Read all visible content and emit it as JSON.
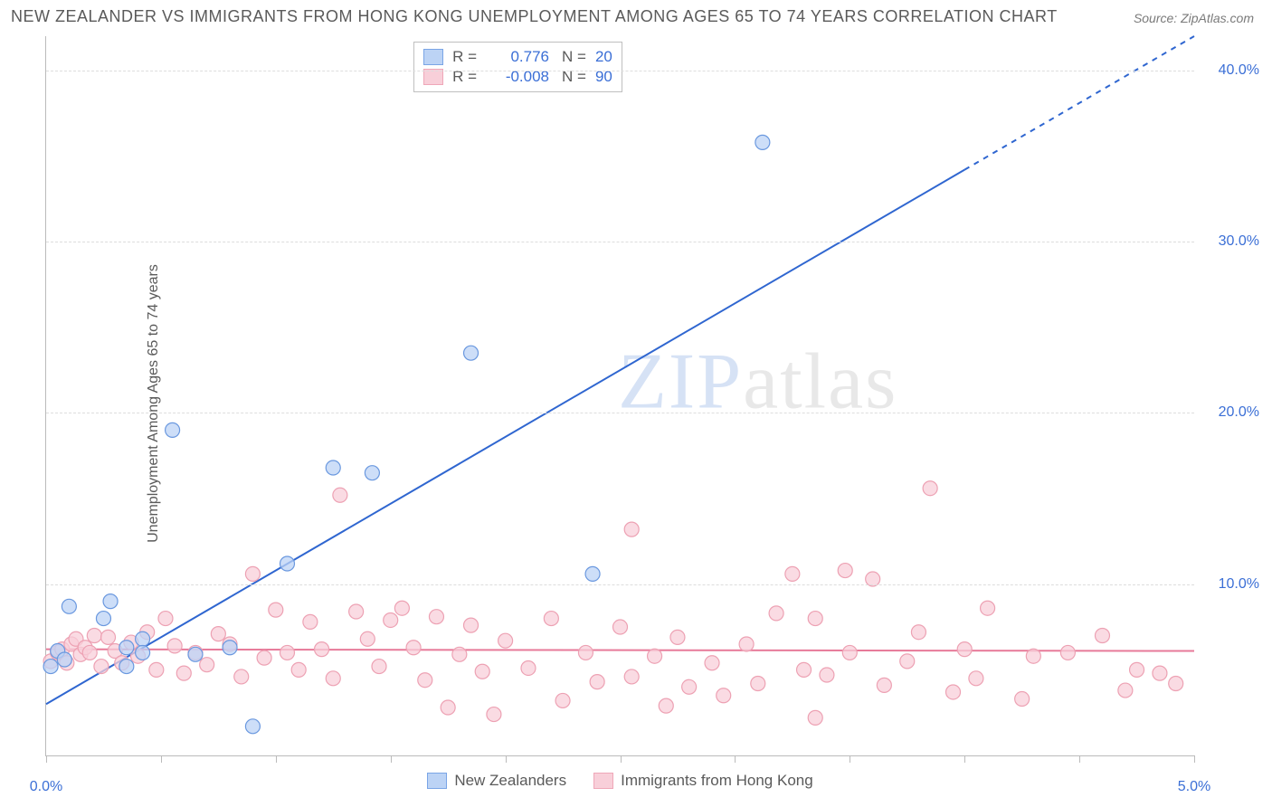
{
  "title": "NEW ZEALANDER VS IMMIGRANTS FROM HONG KONG UNEMPLOYMENT AMONG AGES 65 TO 74 YEARS CORRELATION CHART",
  "source": "Source: ZipAtlas.com",
  "ylabel": "Unemployment Among Ages 65 to 74 years",
  "watermark_a": "ZIP",
  "watermark_b": "atlas",
  "chart": {
    "type": "scatter",
    "background_color": "#ffffff",
    "grid_color": "#dddddd",
    "axis_color": "#bbbbbb",
    "axis_label_color": "#3b6fd6",
    "xlim": [
      0.0,
      5.0
    ],
    "ylim": [
      0.0,
      42.0
    ],
    "xticks": [
      0.0,
      0.5,
      1.0,
      1.5,
      2.0,
      2.5,
      3.0,
      3.5,
      4.0,
      4.5,
      5.0
    ],
    "xtick_labels": {
      "0": "0.0%",
      "10": "5.0%"
    },
    "yticks": [
      10.0,
      20.0,
      30.0,
      40.0
    ],
    "ytick_labels": [
      "10.0%",
      "20.0%",
      "30.0%",
      "40.0%"
    ],
    "marker_radius": 8,
    "marker_stroke_width": 1.2,
    "line_width": 2,
    "series": [
      {
        "name": "New Zealanders",
        "fill": "#bcd3f5",
        "stroke": "#6a98df",
        "line_color": "#2f66d0",
        "r_value": "0.776",
        "n_value": "20",
        "trend": {
          "x1": 0.0,
          "y1": 3.0,
          "x2": 5.0,
          "y2": 42.0,
          "solid_to_x": 4.0
        },
        "points": [
          [
            0.02,
            5.2
          ],
          [
            0.05,
            6.1
          ],
          [
            0.08,
            5.6
          ],
          [
            0.1,
            8.7
          ],
          [
            0.25,
            8.0
          ],
          [
            0.28,
            9.0
          ],
          [
            0.35,
            5.2
          ],
          [
            0.35,
            6.3
          ],
          [
            0.42,
            6.8
          ],
          [
            0.42,
            6.0
          ],
          [
            0.55,
            19.0
          ],
          [
            0.65,
            5.9
          ],
          [
            0.8,
            6.3
          ],
          [
            0.9,
            1.7
          ],
          [
            1.05,
            11.2
          ],
          [
            1.25,
            16.8
          ],
          [
            1.42,
            16.5
          ],
          [
            1.85,
            23.5
          ],
          [
            2.38,
            10.6
          ],
          [
            3.12,
            35.8
          ]
        ]
      },
      {
        "name": "Immigrants from Hong Kong",
        "fill": "#f8cfd9",
        "stroke": "#eda1b3",
        "line_color": "#e77a99",
        "r_value": "-0.008",
        "n_value": "90",
        "trend": {
          "x1": 0.0,
          "y1": 6.2,
          "x2": 5.0,
          "y2": 6.1
        },
        "points": [
          [
            0.02,
            5.5
          ],
          [
            0.05,
            6.0
          ],
          [
            0.07,
            6.2
          ],
          [
            0.09,
            5.4
          ],
          [
            0.11,
            6.5
          ],
          [
            0.13,
            6.8
          ],
          [
            0.15,
            5.9
          ],
          [
            0.17,
            6.3
          ],
          [
            0.19,
            6.0
          ],
          [
            0.21,
            7.0
          ],
          [
            0.24,
            5.2
          ],
          [
            0.27,
            6.9
          ],
          [
            0.3,
            6.1
          ],
          [
            0.33,
            5.4
          ],
          [
            0.37,
            6.6
          ],
          [
            0.4,
            5.8
          ],
          [
            0.44,
            7.2
          ],
          [
            0.48,
            5.0
          ],
          [
            0.52,
            8.0
          ],
          [
            0.56,
            6.4
          ],
          [
            0.6,
            4.8
          ],
          [
            0.65,
            6.0
          ],
          [
            0.7,
            5.3
          ],
          [
            0.75,
            7.1
          ],
          [
            0.8,
            6.5
          ],
          [
            0.85,
            4.6
          ],
          [
            0.9,
            10.6
          ],
          [
            0.95,
            5.7
          ],
          [
            1.0,
            8.5
          ],
          [
            1.05,
            6.0
          ],
          [
            1.1,
            5.0
          ],
          [
            1.15,
            7.8
          ],
          [
            1.2,
            6.2
          ],
          [
            1.25,
            4.5
          ],
          [
            1.28,
            15.2
          ],
          [
            1.35,
            8.4
          ],
          [
            1.4,
            6.8
          ],
          [
            1.45,
            5.2
          ],
          [
            1.5,
            7.9
          ],
          [
            1.55,
            8.6
          ],
          [
            1.6,
            6.3
          ],
          [
            1.65,
            4.4
          ],
          [
            1.7,
            8.1
          ],
          [
            1.75,
            2.8
          ],
          [
            1.8,
            5.9
          ],
          [
            1.85,
            7.6
          ],
          [
            1.9,
            4.9
          ],
          [
            1.95,
            2.4
          ],
          [
            2.0,
            6.7
          ],
          [
            2.1,
            5.1
          ],
          [
            2.2,
            8.0
          ],
          [
            2.25,
            3.2
          ],
          [
            2.35,
            6.0
          ],
          [
            2.4,
            4.3
          ],
          [
            2.5,
            7.5
          ],
          [
            2.55,
            4.6
          ],
          [
            2.55,
            13.2
          ],
          [
            2.65,
            5.8
          ],
          [
            2.7,
            2.9
          ],
          [
            2.75,
            6.9
          ],
          [
            2.8,
            4.0
          ],
          [
            2.9,
            5.4
          ],
          [
            2.95,
            3.5
          ],
          [
            3.05,
            6.5
          ],
          [
            3.1,
            4.2
          ],
          [
            3.18,
            8.3
          ],
          [
            3.25,
            10.6
          ],
          [
            3.3,
            5.0
          ],
          [
            3.35,
            8.0
          ],
          [
            3.35,
            2.2
          ],
          [
            3.4,
            4.7
          ],
          [
            3.48,
            10.8
          ],
          [
            3.5,
            6.0
          ],
          [
            3.6,
            10.3
          ],
          [
            3.65,
            4.1
          ],
          [
            3.75,
            5.5
          ],
          [
            3.8,
            7.2
          ],
          [
            3.85,
            15.6
          ],
          [
            3.95,
            3.7
          ],
          [
            4.0,
            6.2
          ],
          [
            4.05,
            4.5
          ],
          [
            4.1,
            8.6
          ],
          [
            4.25,
            3.3
          ],
          [
            4.3,
            5.8
          ],
          [
            4.45,
            6.0
          ],
          [
            4.6,
            7.0
          ],
          [
            4.7,
            3.8
          ],
          [
            4.75,
            5.0
          ],
          [
            4.85,
            4.8
          ],
          [
            4.92,
            4.2
          ]
        ]
      }
    ],
    "legend_bottom": [
      {
        "swatch": "blue",
        "label": "New Zealanders"
      },
      {
        "swatch": "pink",
        "label": "Immigrants from Hong Kong"
      }
    ]
  }
}
